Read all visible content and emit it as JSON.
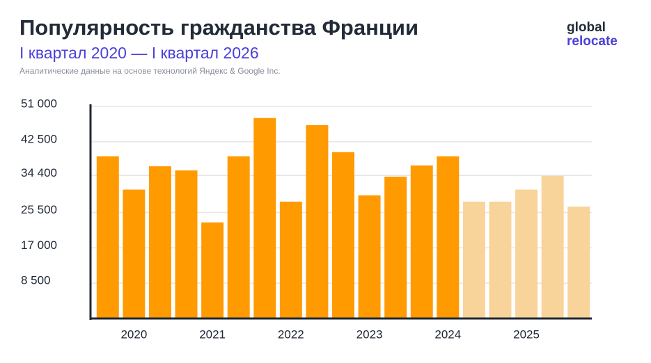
{
  "chart_data": {
    "type": "bar",
    "title": "Популярность гражданства Франции",
    "subtitle": "I квартал 2020 — I квартал 2026",
    "source": "Аналитические данные на основе технологий Яндекс & Google Inc.",
    "logo": [
      "global",
      "relocate"
    ],
    "categories": [
      null,
      "2020",
      null,
      null,
      "2021",
      null,
      null,
      "2022",
      null,
      null,
      "2023",
      null,
      null,
      "2024",
      null,
      null,
      "2025",
      null,
      null
    ],
    "values": [
      39000,
      31000,
      36600,
      35600,
      23100,
      39000,
      48200,
      28100,
      46500,
      40000,
      29600,
      34100,
      36800,
      39000,
      28100,
      28100,
      31000,
      34300,
      26900
    ],
    "bar_colors": [
      "#ff9a00",
      "#ff9a00",
      "#ff9a00",
      "#ff9a00",
      "#ff9a00",
      "#ff9a00",
      "#ff9a00",
      "#ff9a00",
      "#ff9a00",
      "#ff9a00",
      "#ff9a00",
      "#ff9a00",
      "#ff9a00",
      "#ff9a00",
      "#f8d49b",
      "#f8d49b",
      "#f8d49b",
      "#f8d49b",
      "#f8d49b"
    ],
    "ylim": [
      0,
      51000
    ],
    "yticks": [
      {
        "value": 8500,
        "label": "8 500"
      },
      {
        "value": 17000,
        "label": "17 000"
      },
      {
        "value": 25500,
        "label": "25 500"
      },
      {
        "value": 34400,
        "label": "34 400"
      },
      {
        "value": 42500,
        "label": "42 500"
      },
      {
        "value": 51000,
        "label": "51 000"
      }
    ],
    "grid": true
  }
}
